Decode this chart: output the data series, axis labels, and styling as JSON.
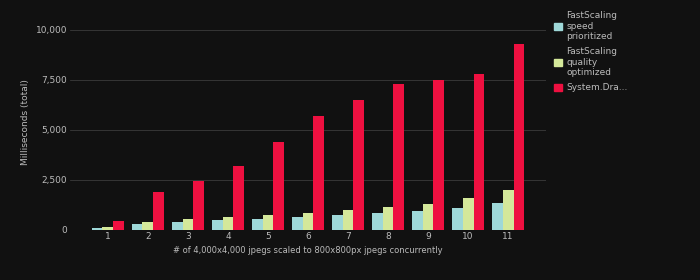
{
  "categories": [
    1,
    2,
    3,
    4,
    5,
    6,
    7,
    8,
    9,
    10,
    11
  ],
  "fastscaling_speed": [
    80,
    260,
    380,
    480,
    520,
    620,
    720,
    820,
    950,
    1100,
    1350
  ],
  "fastscaling_quality": [
    130,
    360,
    530,
    640,
    730,
    840,
    980,
    1120,
    1300,
    1600,
    2000
  ],
  "system_drawing": [
    450,
    1900,
    2450,
    3200,
    4400,
    5700,
    6500,
    7300,
    7500,
    7800,
    9300
  ],
  "bar_color_speed": "#9ed8d8",
  "bar_color_quality": "#d4e89a",
  "bar_color_system": "#ee1040",
  "background_color": "#111111",
  "plot_bg_color": "#111111",
  "text_color": "#bbbbbb",
  "grid_color": "#444444",
  "ylabel": "Milliseconds (total)",
  "xlabel": "# of 4,000x4,000 jpegs scaled to 800x800px jpegs concurrently",
  "yticks": [
    0,
    2500,
    5000,
    7500,
    10000
  ],
  "ylim": [
    0,
    10800
  ],
  "legend_labels": [
    "FastScaling\nspeed\nprioritized",
    "FastScaling\nquality\noptimized",
    "System.Dra..."
  ],
  "bar_width": 0.27,
  "axis_fontsize": 6.5,
  "legend_fontsize": 6.5,
  "ylabel_fontsize": 6.5,
  "xlabel_fontsize": 6.0
}
